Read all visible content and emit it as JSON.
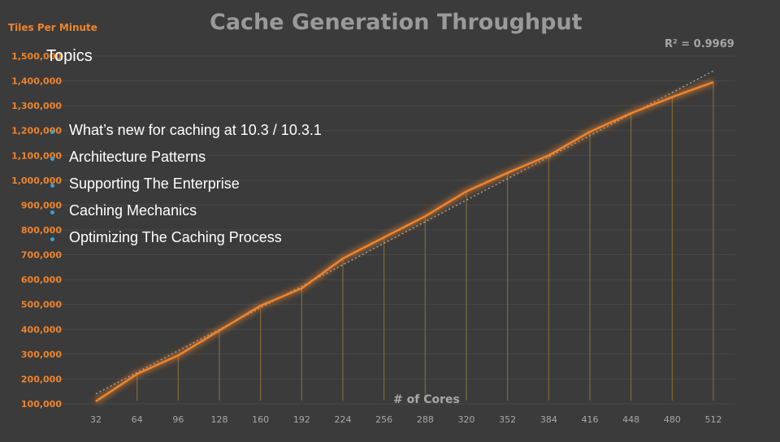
{
  "slide": {
    "title": "Topics",
    "bullets": [
      "What’s new for caching at 10.3 / 10.3.1",
      "Architecture Patterns",
      "Supporting The Enterprise",
      "Caching Mechanics",
      "Optimizing The Caching Process"
    ]
  },
  "colors": {
    "background": "#3b3b3b",
    "line": "#f0842b",
    "tick_label": "#f0842b",
    "drop_line": "#b08a3c",
    "trendline": "#aaaaaa",
    "title": "#9a9a9a"
  },
  "chart_data": {
    "type": "line",
    "title": "Cache Generation Throughput",
    "xlabel": "# of Cores",
    "ylabel": "Tiles Per Minute",
    "annotation": "R² = 0.9969",
    "x": [
      32,
      64,
      96,
      128,
      160,
      192,
      224,
      256,
      288,
      320,
      352,
      384,
      416,
      448,
      480,
      512
    ],
    "series": [
      {
        "values": [
          110000,
          220000,
          295000,
          395000,
          495000,
          565000,
          685000,
          770000,
          855000,
          955000,
          1030000,
          1100000,
          1195000,
          1270000,
          1335000,
          1395000
        ]
      }
    ],
    "trendline": {
      "type": "linear",
      "from": [
        32,
        140000
      ],
      "to": [
        512,
        1440000
      ]
    },
    "ylim": [
      100000,
      1500000
    ],
    "yticks": [
      "100,000",
      "200,000",
      "300,000",
      "400,000",
      "500,000",
      "600,000",
      "700,000",
      "800,000",
      "900,000",
      "1,000,000",
      "1,100,000",
      "1,200,000",
      "1,300,000",
      "1,400,000",
      "1,500,000"
    ],
    "ytick_values": [
      100000,
      200000,
      300000,
      400000,
      500000,
      600000,
      700000,
      800000,
      900000,
      1000000,
      1100000,
      1200000,
      1300000,
      1400000,
      1500000
    ],
    "grid": true,
    "drop_lines": true
  }
}
